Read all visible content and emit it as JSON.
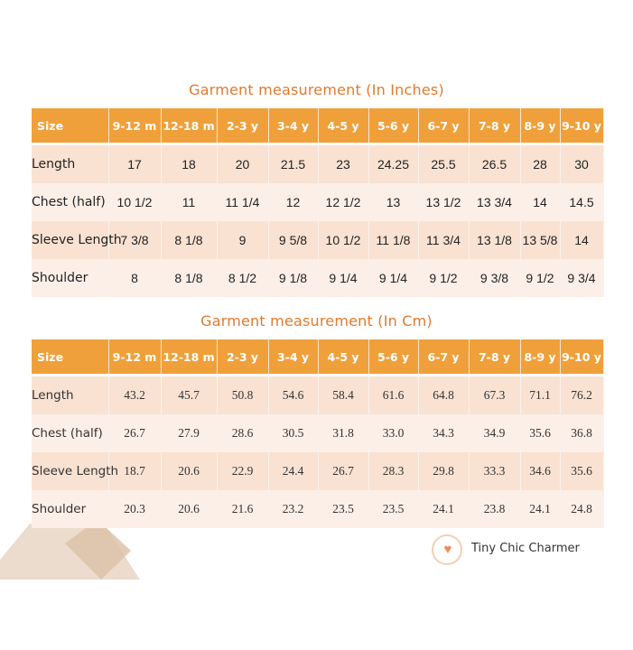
{
  "inches": {
    "title": "Garment measurement (In Inches)",
    "header": [
      "Size",
      "9-12 m",
      "12-18 m",
      "2-3 y",
      "3-4 y",
      "4-5 y",
      "5-6 y",
      "6-7 y",
      "7-8 y",
      "8-9 y",
      "9-10 y"
    ],
    "rows": [
      [
        "Length",
        "17",
        "18",
        "20",
        "21.5",
        "23",
        "24.25",
        "25.5",
        "26.5",
        "28",
        "30"
      ],
      [
        "Chest (half)",
        "10 1/2",
        "11",
        "11 1/4",
        "12",
        "12 1/2",
        "13",
        "13 1/2",
        "13 3/4",
        "14",
        "14.5"
      ],
      [
        "Sleeve Length",
        "7 3/8",
        "8 1/8",
        "9",
        "9 5/8",
        "10 1/2",
        "11 1/8",
        "11 3/4",
        "13 1/8",
        "13 5/8",
        "14"
      ],
      [
        "Shoulder",
        "8",
        "8 1/8",
        "8 1/2",
        "9 1/8",
        "9 1/4",
        "9 1/4",
        "9 1/2",
        "9 3/8",
        "9 1/2",
        "9 3/4"
      ]
    ]
  },
  "cm": {
    "title": "Garment measurement (In Cm)",
    "header": [
      "Size",
      "9-12 m",
      "12-18 m",
      "2-3 y",
      "3-4 y",
      "4-5 y",
      "5-6 y",
      "6-7 y",
      "7-8 y",
      "8-9 y",
      "9-10 y"
    ],
    "rows": [
      [
        "Length",
        "43.2",
        "45.7",
        "50.8",
        "54.6",
        "58.4",
        "61.6",
        "64.8",
        "67.3",
        "71.1",
        "76.2"
      ],
      [
        "Chest (half)",
        "26.7",
        "27.9",
        "28.6",
        "30.5",
        "31.8",
        "33.0",
        "34.3",
        "34.9",
        "35.6",
        "36.8"
      ],
      [
        "Sleeve Length",
        "18.7",
        "20.6",
        "22.9",
        "24.4",
        "26.7",
        "28.3",
        "29.8",
        "33.3",
        "34.6",
        "35.6"
      ],
      [
        "Shoulder",
        "20.3",
        "20.6",
        "21.6",
        "23.2",
        "23.5",
        "23.5",
        "24.1",
        "23.8",
        "24.1",
        "24.8"
      ]
    ]
  },
  "brand": {
    "name": "Tiny Chic Charmer",
    "icon": "heart-icon"
  },
  "colors": {
    "header": "#f0a03a",
    "title": "#e07a2c",
    "row_odd": "#f9e2d2",
    "row_even": "#fcefe8"
  }
}
